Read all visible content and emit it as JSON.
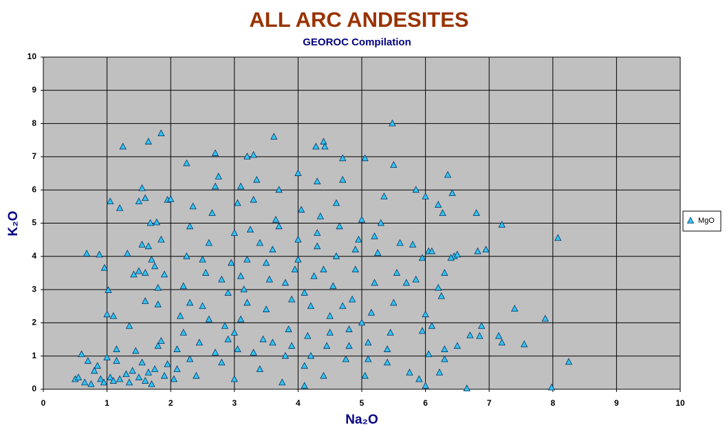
{
  "chart_data": {
    "type": "scatter",
    "title": "ALL ARC ANDESITES",
    "subtitle": "GEOROC Compilation",
    "x_label": "Na₂O",
    "y_label": "K₂O",
    "xlim": [
      0,
      10
    ],
    "ylim": [
      0,
      10
    ],
    "xticks": [
      0,
      1,
      2,
      3,
      4,
      5,
      6,
      7,
      8,
      9,
      10
    ],
    "yticks": [
      0,
      1,
      2,
      3,
      4,
      5,
      6,
      7,
      8,
      9,
      10
    ],
    "grid": true,
    "legend": "right",
    "series": [
      {
        "name": "MgO",
        "color": "#33c3f0",
        "x": [
          0.5,
          0.6,
          0.7,
          0.68,
          0.88,
          0.96,
          1.02,
          1.0,
          1.1,
          1.05,
          1.2,
          1.25,
          1.32,
          1.35,
          1.42,
          1.5,
          1.55,
          1.65,
          1.85,
          1.6,
          1.68,
          1.78,
          2.25,
          2.7,
          3.2,
          3.3,
          3.62,
          4.28,
          4.4,
          4.42,
          4.7,
          5.05,
          5.48,
          5.5,
          6.35,
          6.42,
          6.8,
          7.2,
          8.08,
          6.82,
          6.95,
          7.4,
          7.88,
          6.65,
          7.98,
          8.25,
          7.55,
          7.2,
          7.15,
          6.85,
          6.88,
          6.7,
          6.5,
          6.3,
          6.3,
          6.22,
          6.1,
          6.25,
          6.2,
          6.3,
          6.45,
          6.2,
          6.27,
          6.0,
          5.85,
          4.1,
          5.9,
          6.0,
          6.05,
          5.75,
          5.95,
          6.0,
          5.85,
          5.7,
          6.05,
          6.1,
          5.8,
          5.95,
          6.4,
          6.5,
          0.55,
          0.65,
          0.75,
          0.8,
          0.85,
          0.9,
          0.95,
          1.0,
          1.05,
          1.1,
          1.15,
          1.15,
          1.2,
          1.3,
          1.35,
          1.4,
          1.45,
          1.5,
          1.55,
          1.6,
          1.65,
          1.7,
          1.75,
          1.8,
          1.85,
          1.9,
          1.95,
          1.5,
          1.6,
          1.65,
          1.55,
          1.7,
          1.75,
          1.8,
          1.85,
          1.9,
          1.95,
          2.0,
          1.8,
          1.6,
          2.05,
          2.1,
          2.15,
          2.2,
          2.25,
          2.3,
          2.35,
          2.1,
          2.2,
          2.3,
          2.4,
          2.45,
          2.5,
          2.55,
          2.6,
          2.65,
          2.7,
          2.75,
          2.8,
          2.85,
          2.9,
          2.95,
          3.0,
          3.05,
          3.1,
          3.0,
          3.05,
          3.1,
          3.15,
          3.2,
          3.25,
          3.3,
          3.35,
          3.4,
          3.45,
          3.5,
          3.55,
          3.6,
          3.65,
          3.7,
          3.75,
          3.8,
          3.85,
          3.9,
          3.95,
          4.0,
          4.05,
          4.0,
          4.1,
          4.15,
          4.2,
          4.25,
          4.3,
          4.35,
          4.3,
          4.4,
          4.45,
          4.5,
          4.55,
          4.6,
          4.65,
          4.7,
          4.75,
          4.8,
          4.85,
          4.9,
          4.95,
          5.0,
          5.05,
          5.1,
          5.15,
          5.2,
          5.25,
          5.3,
          5.35,
          5.4,
          5.45,
          5.5,
          5.55,
          5.6,
          2.3,
          2.6,
          2.9,
          3.2,
          3.5,
          3.8,
          4.1,
          4.4,
          4.7,
          5.0,
          2.7,
          3.0,
          3.3,
          3.6,
          3.9,
          4.2,
          4.5,
          4.8,
          5.1,
          5.4,
          3.4,
          3.7,
          4.0,
          4.3,
          4.6,
          3.1,
          2.8,
          2.5,
          4.9,
          5.2
        ],
        "values": [
          0.3,
          1.05,
          0.85,
          4.08,
          4.05,
          3.65,
          2.98,
          2.25,
          2.2,
          5.65,
          5.45,
          7.3,
          4.08,
          1.9,
          3.45,
          5.65,
          6.05,
          7.45,
          7.7,
          5.75,
          5.0,
          5.02,
          6.8,
          7.1,
          7.0,
          7.05,
          7.6,
          7.3,
          7.45,
          7.3,
          6.95,
          6.95,
          8.0,
          6.75,
          6.45,
          5.9,
          5.3,
          4.95,
          4.55,
          4.15,
          4.2,
          2.42,
          2.12,
          0.02,
          0.05,
          0.82,
          1.35,
          1.4,
          1.6,
          1.6,
          1.9,
          1.62,
          1.3,
          1.2,
          0.9,
          0.5,
          1.9,
          2.8,
          3.05,
          3.5,
          4.0,
          5.55,
          5.3,
          5.8,
          6.0,
          0.1,
          0.3,
          0.1,
          1.05,
          0.5,
          1.75,
          2.25,
          3.3,
          3.2,
          4.15,
          4.15,
          4.35,
          3.95,
          3.95,
          4.05,
          0.35,
          0.2,
          0.15,
          0.55,
          0.7,
          0.3,
          0.2,
          0.95,
          0.35,
          0.25,
          1.2,
          0.85,
          0.3,
          0.45,
          0.2,
          0.55,
          1.15,
          0.35,
          0.8,
          0.25,
          0.5,
          0.15,
          0.6,
          1.3,
          1.45,
          0.4,
          0.75,
          3.55,
          3.5,
          4.3,
          4.35,
          3.9,
          3.7,
          3.05,
          4.5,
          3.45,
          5.7,
          5.72,
          2.55,
          2.65,
          0.3,
          1.2,
          2.2,
          3.1,
          4.0,
          4.9,
          5.5,
          0.6,
          1.7,
          0.9,
          0.4,
          1.4,
          2.5,
          3.5,
          4.4,
          5.3,
          6.1,
          6.4,
          0.8,
          1.9,
          2.9,
          3.8,
          4.7,
          5.6,
          6.1,
          0.3,
          1.2,
          2.1,
          3.0,
          3.9,
          4.8,
          5.7,
          6.3,
          0.6,
          1.5,
          2.4,
          3.3,
          4.2,
          5.1,
          6.0,
          0.2,
          1.0,
          1.8,
          2.7,
          3.6,
          4.5,
          5.4,
          6.5,
          0.7,
          1.6,
          2.5,
          3.4,
          4.3,
          5.2,
          6.25,
          0.4,
          1.3,
          2.2,
          3.1,
          4.0,
          4.9,
          6.3,
          0.9,
          1.8,
          2.7,
          3.6,
          4.5,
          5.1,
          0.4,
          1.4,
          2.3,
          3.2,
          4.1,
          5.0,
          5.8,
          0.8,
          1.7,
          2.6,
          3.5,
          4.4,
          2.6,
          2.1,
          1.5,
          2.6,
          3.8,
          3.2,
          2.9,
          3.6,
          2.5,
          2.0,
          1.1,
          1.7,
          1.1,
          1.4,
          1.3,
          1.0,
          1.7,
          1.3,
          0.9,
          1.2,
          4.4,
          4.9,
          3.9,
          4.7,
          5.6,
          3.4,
          3.3,
          3.9,
          4.2,
          4.6
        ]
      }
    ]
  }
}
